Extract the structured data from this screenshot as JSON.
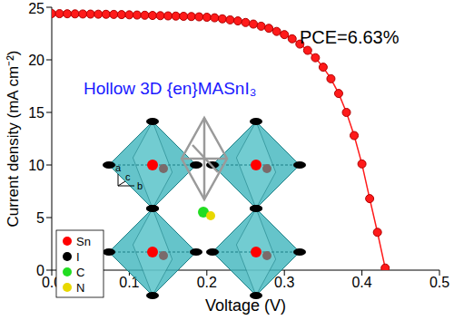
{
  "chart_data": {
    "type": "line",
    "x_label": "Voltage (V)",
    "y_label": "Current density (mA cm⁻²)",
    "color": "#ff1a1a",
    "marker": "circle",
    "line_style": "solid",
    "grid": false,
    "xlim": [
      0,
      0.5
    ],
    "xticks": [
      {
        "value": 0,
        "label": "0.0"
      },
      0.1,
      0.2,
      0.3,
      0.4,
      0.5
    ],
    "ylim": [
      0,
      25
    ],
    "yticks": [
      0,
      5,
      10,
      15,
      20,
      25
    ],
    "x": [
      0,
      0.01,
      0.02,
      0.03,
      0.04,
      0.05,
      0.06,
      0.07,
      0.08,
      0.09,
      0.1,
      0.11,
      0.12,
      0.13,
      0.14,
      0.15,
      0.16,
      0.17,
      0.18,
      0.19,
      0.2,
      0.21,
      0.22,
      0.23,
      0.24,
      0.25,
      0.26,
      0.27,
      0.28,
      0.29,
      0.3,
      0.31,
      0.32,
      0.33,
      0.34,
      0.35,
      0.36,
      0.37,
      0.38,
      0.39,
      0.4,
      0.41,
      0.42,
      0.43
    ],
    "values": [
      24.4,
      24.39,
      24.38,
      24.37,
      24.36,
      24.35,
      24.34,
      24.33,
      24.32,
      24.3,
      24.28,
      24.26,
      24.24,
      24.22,
      24.2,
      24.18,
      24.16,
      24.14,
      24.12,
      24.09,
      24.05,
      24.0,
      23.9,
      23.8,
      23.7,
      23.55,
      23.4,
      23.2,
      23.0,
      22.7,
      22.4,
      22.0,
      21.5,
      20.9,
      20.2,
      19.3,
      18.2,
      16.8,
      15.0,
      12.8,
      10.1,
      6.8,
      3.6,
      0.2
    ],
    "annotations": [
      "PCE=6.63%",
      "Hollow 3D {en}MASnI₃"
    ],
    "inset": {
      "axis_labels": [
        "a",
        "c",
        "b"
      ],
      "legend": [
        {
          "label": "Sn",
          "color": "#ff0000"
        },
        {
          "label": "I",
          "color": "#000000"
        },
        {
          "label": "C",
          "color": "#22dd22"
        },
        {
          "label": "N",
          "color": "#e8d800"
        }
      ]
    }
  }
}
